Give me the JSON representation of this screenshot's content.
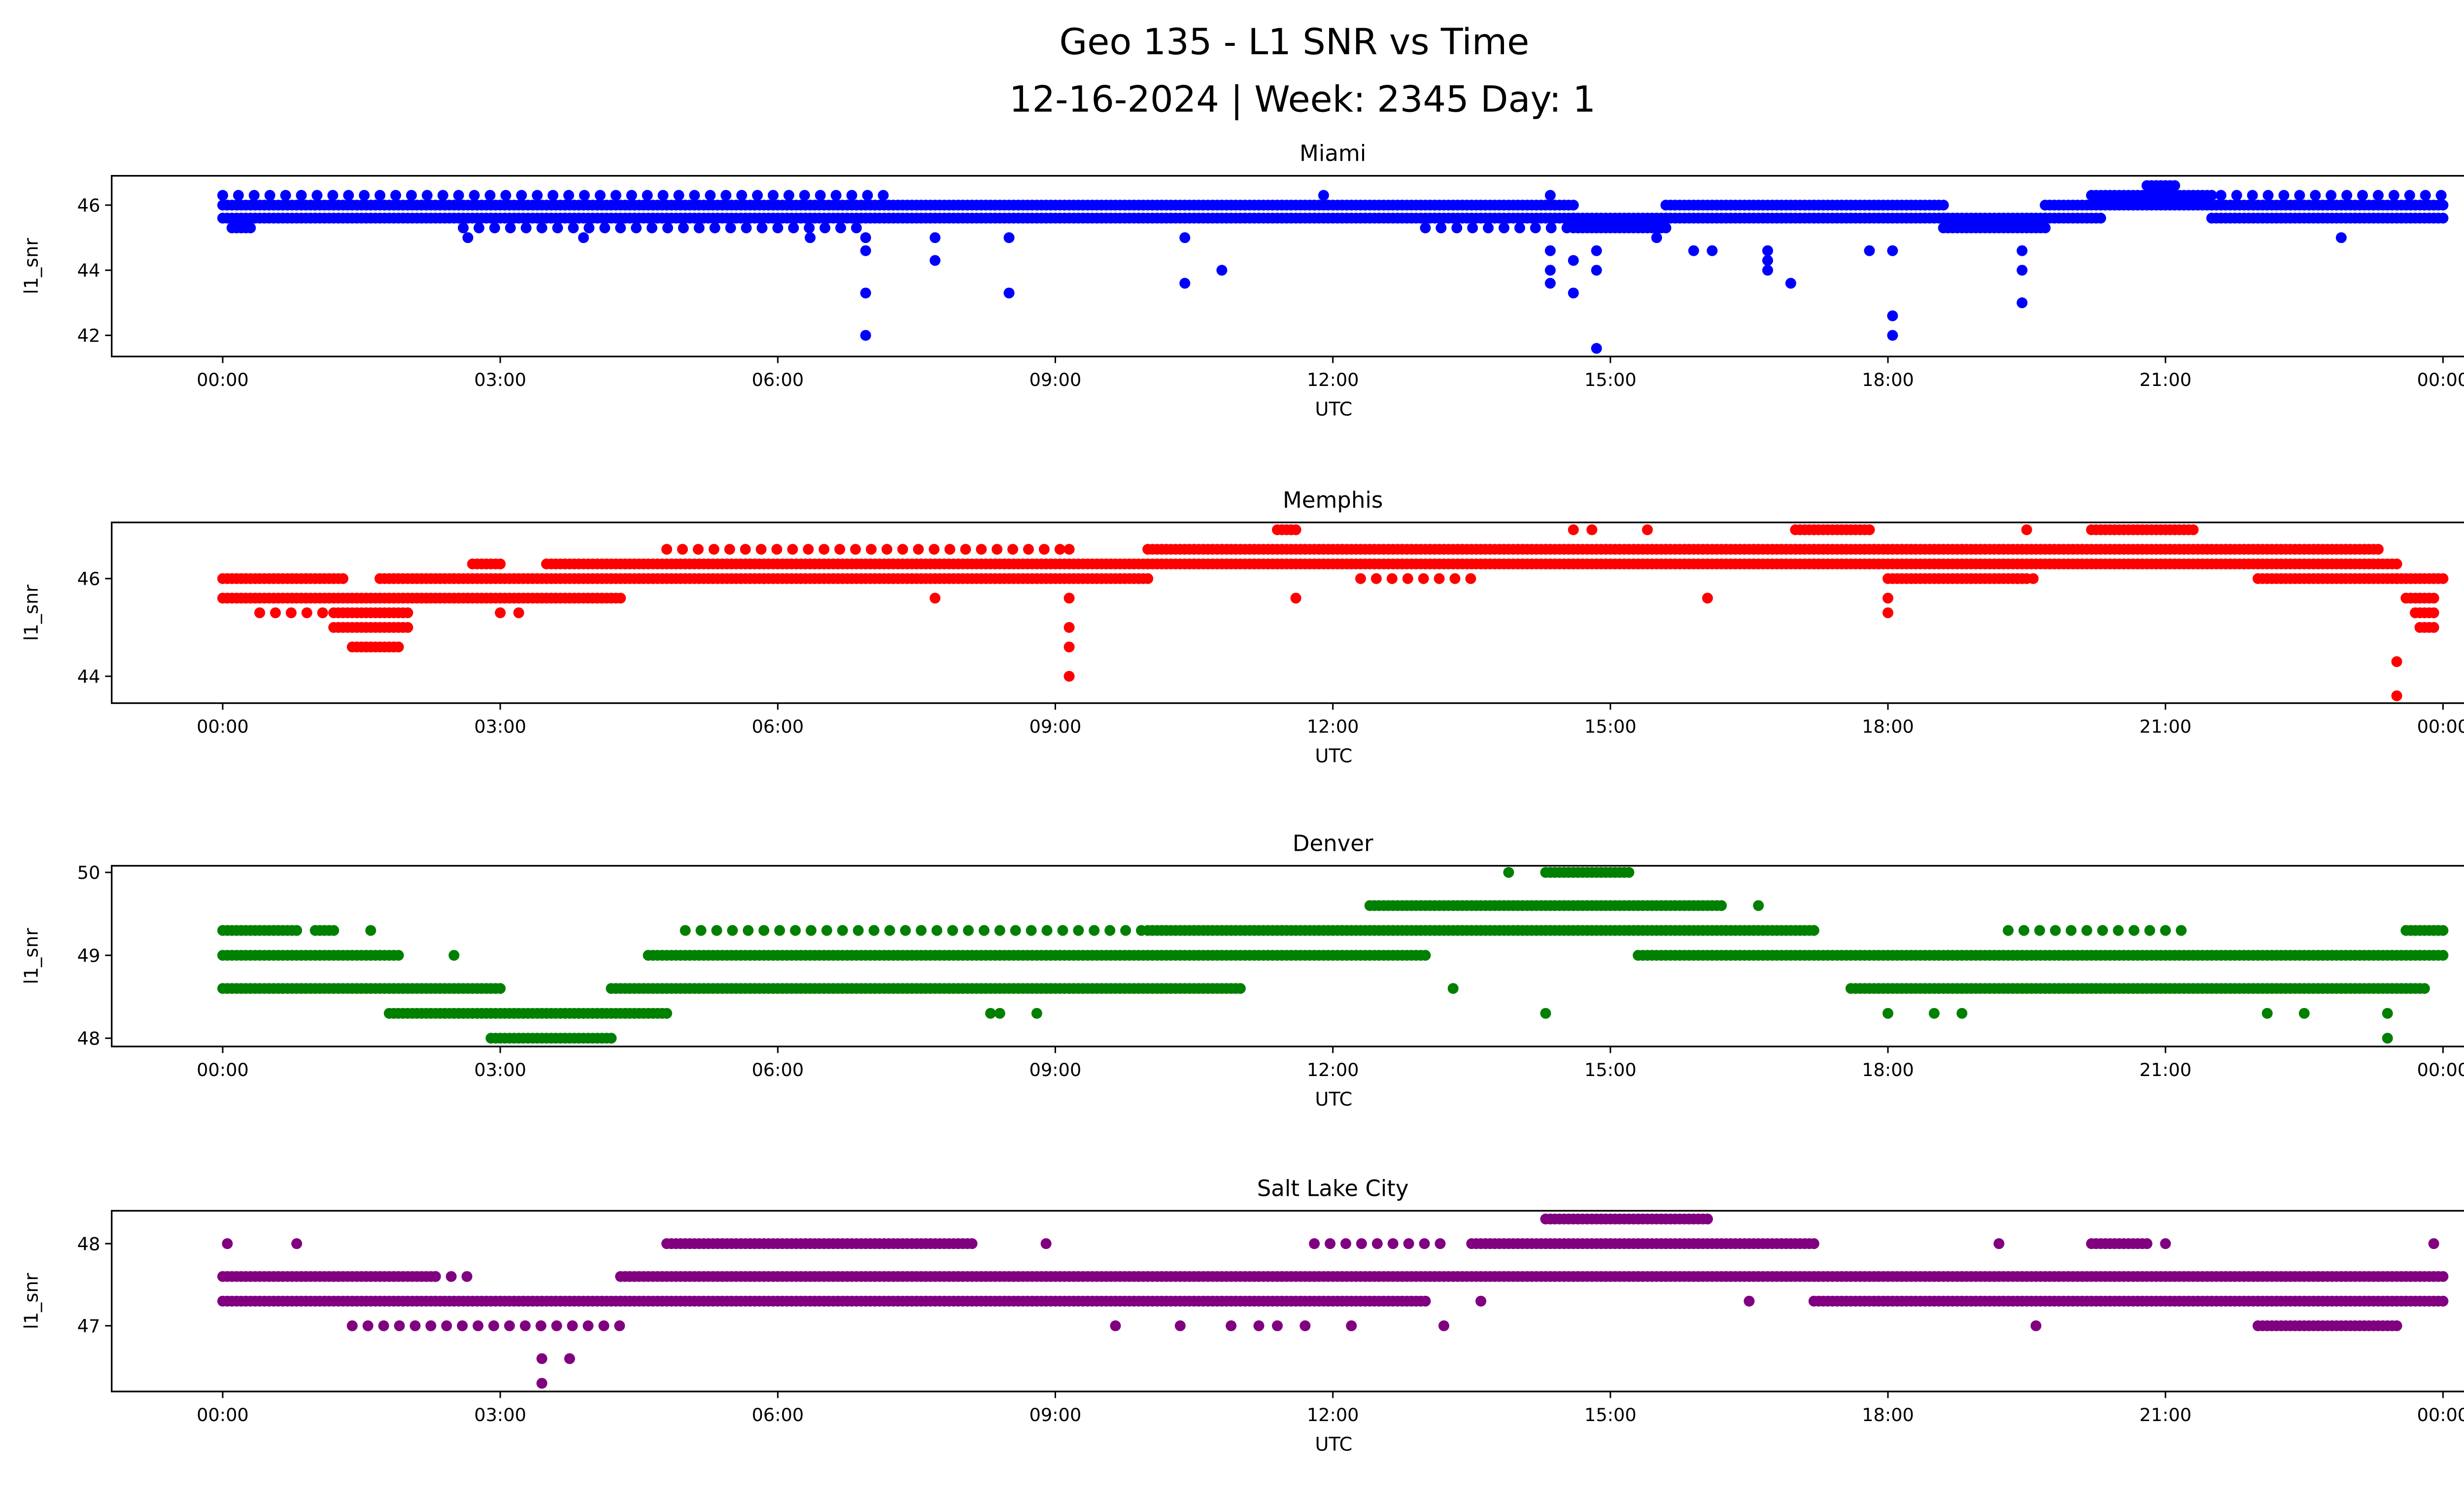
{
  "title_line1": "Geo 135 - L1 SNR vs Time",
  "title_line2": "12-16-2024 | Week: 2345 Day: 1",
  "chart_data": [
    {
      "type": "scatter",
      "title": "Miami",
      "xlabel": "UTC",
      "ylabel": "l1_snr",
      "color": "#0000ff",
      "xlim": [
        -1.2,
        25.2
      ],
      "ylim": [
        41.35,
        46.9
      ],
      "xticks": [
        0,
        3,
        6,
        9,
        12,
        15,
        18,
        21,
        24
      ],
      "xtick_labels": [
        "00:00",
        "03:00",
        "06:00",
        "09:00",
        "12:00",
        "15:00",
        "18:00",
        "21:00",
        "00:00"
      ],
      "yticks": [
        42,
        44,
        46
      ],
      "ytick_labels": [
        "42",
        "44",
        "46"
      ],
      "segments": [
        {
          "y": 45.6,
          "from": 0,
          "to": 14.6
        },
        {
          "y": 46.0,
          "from": 0,
          "to": 14.6
        },
        {
          "y": 46.3,
          "from": 0,
          "to": 7.2,
          "sparse": true
        },
        {
          "y": 45.3,
          "from": 0.1,
          "to": 0.3
        },
        {
          "y": 45.3,
          "from": 2.6,
          "to": 7.0,
          "sparse": true
        },
        {
          "y": 45.3,
          "from": 13.0,
          "to": 14.6,
          "sparse": true
        },
        {
          "y": 45.3,
          "from": 14.6,
          "to": 15.6
        },
        {
          "y": 45.6,
          "from": 14.6,
          "to": 15.6
        },
        {
          "y": 45.6,
          "from": 15.6,
          "to": 18.6
        },
        {
          "y": 46.0,
          "from": 15.6,
          "to": 18.6
        },
        {
          "y": 45.3,
          "from": 18.6,
          "to": 19.7
        },
        {
          "y": 45.6,
          "from": 18.6,
          "to": 19.7
        },
        {
          "y": 45.6,
          "from": 19.7,
          "to": 20.3
        },
        {
          "y": 46.0,
          "from": 19.7,
          "to": 21.5
        },
        {
          "y": 46.3,
          "from": 20.2,
          "to": 21.5
        },
        {
          "y": 46.6,
          "from": 20.8,
          "to": 21.1
        },
        {
          "y": 45.6,
          "from": 21.5,
          "to": 24
        },
        {
          "y": 46.0,
          "from": 21.5,
          "to": 24
        },
        {
          "y": 46.3,
          "from": 21.6,
          "to": 24,
          "sparse": true
        }
      ],
      "points": [
        [
          6.95,
          45.0
        ],
        [
          6.95,
          44.6
        ],
        [
          6.95,
          43.3
        ],
        [
          6.95,
          42.0
        ],
        [
          7.7,
          45.0
        ],
        [
          7.7,
          44.3
        ],
        [
          8.5,
          45.0
        ],
        [
          8.5,
          43.3
        ],
        [
          10.4,
          43.6
        ],
        [
          10.4,
          45.0
        ],
        [
          10.8,
          44.0
        ],
        [
          14.35,
          44.6
        ],
        [
          14.35,
          44.0
        ],
        [
          14.35,
          43.6
        ],
        [
          14.35,
          46.3
        ],
        [
          14.6,
          44.3
        ],
        [
          14.6,
          43.3
        ],
        [
          14.85,
          44.6
        ],
        [
          14.85,
          44.0
        ],
        [
          14.85,
          41.6
        ],
        [
          16.7,
          44.6
        ],
        [
          16.7,
          44.3
        ],
        [
          16.7,
          44.0
        ],
        [
          16.95,
          43.6
        ],
        [
          17.8,
          44.6
        ],
        [
          18.05,
          44.6
        ],
        [
          18.05,
          42.6
        ],
        [
          18.05,
          42.0
        ],
        [
          19.45,
          44.6
        ],
        [
          19.45,
          44.0
        ],
        [
          19.45,
          43.0
        ],
        [
          15.5,
          45.0
        ],
        [
          15.9,
          44.6
        ],
        [
          16.1,
          44.6
        ],
        [
          2.65,
          45.0
        ],
        [
          3.9,
          45.0
        ],
        [
          6.35,
          45.0
        ],
        [
          22.9,
          45.0
        ],
        [
          11.9,
          46.3
        ]
      ]
    },
    {
      "type": "scatter",
      "title": "Memphis",
      "xlabel": "UTC",
      "ylabel": "l1_snr",
      "color": "#ff0000",
      "xlim": [
        -1.2,
        25.2
      ],
      "ylim": [
        43.45,
        47.15
      ],
      "xticks": [
        0,
        3,
        6,
        9,
        12,
        15,
        18,
        21,
        24
      ],
      "xtick_labels": [
        "00:00",
        "03:00",
        "06:00",
        "09:00",
        "12:00",
        "15:00",
        "18:00",
        "21:00",
        "00:00"
      ],
      "yticks": [
        44,
        46
      ],
      "ytick_labels": [
        "44",
        "46"
      ],
      "segments": [
        {
          "y": 45.6,
          "from": 0,
          "to": 4.3
        },
        {
          "y": 46.0,
          "from": 0,
          "to": 1.3
        },
        {
          "y": 45.3,
          "from": 0.4,
          "to": 1.2,
          "sparse": true
        },
        {
          "y": 45.0,
          "from": 1.2,
          "to": 2.0
        },
        {
          "y": 45.3,
          "from": 1.2,
          "to": 2.0
        },
        {
          "y": 44.6,
          "from": 1.4,
          "to": 1.9
        },
        {
          "y": 46.0,
          "from": 1.7,
          "to": 10.0
        },
        {
          "y": 46.3,
          "from": 2.7,
          "to": 3.0
        },
        {
          "y": 46.3,
          "from": 3.5,
          "to": 10.0
        },
        {
          "y": 46.6,
          "from": 4.8,
          "to": 9.2,
          "sparse": true
        },
        {
          "y": 46.3,
          "from": 10.0,
          "to": 22.0
        },
        {
          "y": 46.6,
          "from": 10.0,
          "to": 23.3
        },
        {
          "y": 46.0,
          "from": 12.3,
          "to": 13.5,
          "sparse": true
        },
        {
          "y": 47.0,
          "from": 11.4,
          "to": 11.6
        },
        {
          "y": 47.0,
          "from": 17.0,
          "to": 17.8
        },
        {
          "y": 46.0,
          "from": 18.0,
          "to": 19.5
        },
        {
          "y": 46.0,
          "from": 19.4,
          "to": 19.7,
          "sparse": true
        },
        {
          "y": 47.0,
          "from": 20.2,
          "to": 21.3
        },
        {
          "y": 46.0,
          "from": 22.0,
          "to": 23.5
        },
        {
          "y": 46.3,
          "from": 22.0,
          "to": 23.5
        },
        {
          "y": 46.0,
          "from": 23.5,
          "to": 24
        },
        {
          "y": 45.6,
          "from": 23.6,
          "to": 23.9
        },
        {
          "y": 45.3,
          "from": 23.7,
          "to": 23.9
        },
        {
          "y": 45.0,
          "from": 23.75,
          "to": 23.9
        }
      ],
      "points": [
        [
          9.15,
          45.6
        ],
        [
          9.15,
          45.0
        ],
        [
          9.15,
          44.6
        ],
        [
          9.15,
          44.0
        ],
        [
          18.0,
          45.6
        ],
        [
          18.0,
          45.3
        ],
        [
          23.5,
          44.3
        ],
        [
          23.5,
          43.6
        ],
        [
          7.7,
          45.6
        ],
        [
          11.6,
          45.6
        ],
        [
          16.05,
          45.6
        ],
        [
          5.85,
          46.0
        ],
        [
          3.0,
          45.3
        ],
        [
          3.2,
          45.3
        ],
        [
          14.6,
          47.0
        ],
        [
          14.8,
          47.0
        ],
        [
          15.4,
          47.0
        ],
        [
          19.5,
          47.0
        ],
        [
          9.15,
          46.6
        ]
      ]
    },
    {
      "type": "scatter",
      "title": "Denver",
      "xlabel": "UTC",
      "ylabel": "l1_snr",
      "color": "#008000",
      "xlim": [
        -1.2,
        25.2
      ],
      "ylim": [
        47.9,
        50.08
      ],
      "xticks": [
        0,
        3,
        6,
        9,
        12,
        15,
        18,
        21,
        24
      ],
      "xtick_labels": [
        "00:00",
        "03:00",
        "06:00",
        "09:00",
        "12:00",
        "15:00",
        "18:00",
        "21:00",
        "00:00"
      ],
      "yticks": [
        48,
        49,
        50
      ],
      "ytick_labels": [
        "48",
        "49",
        "50"
      ],
      "segments": [
        {
          "y": 48.6,
          "from": 0,
          "to": 3.0
        },
        {
          "y": 49.0,
          "from": 0,
          "to": 1.9
        },
        {
          "y": 49.3,
          "from": 0,
          "to": 0.8
        },
        {
          "y": 49.3,
          "from": 1.0,
          "to": 1.2
        },
        {
          "y": 48.3,
          "from": 1.8,
          "to": 4.8
        },
        {
          "y": 48.0,
          "from": 2.9,
          "to": 4.2
        },
        {
          "y": 48.6,
          "from": 4.2,
          "to": 11.0
        },
        {
          "y": 49.0,
          "from": 4.6,
          "to": 13.0
        },
        {
          "y": 49.3,
          "from": 5.0,
          "to": 10.0,
          "sparse": true
        },
        {
          "y": 49.3,
          "from": 10.0,
          "to": 17.2
        },
        {
          "y": 49.6,
          "from": 12.4,
          "to": 16.2
        },
        {
          "y": 50.0,
          "from": 14.3,
          "to": 15.2
        },
        {
          "y": 49.0,
          "from": 15.3,
          "to": 24
        },
        {
          "y": 48.6,
          "from": 17.6,
          "to": 23.8
        },
        {
          "y": 49.3,
          "from": 19.3,
          "to": 21.2,
          "sparse": true
        },
        {
          "y": 49.3,
          "from": 23.6,
          "to": 24
        }
      ],
      "points": [
        [
          2.5,
          49.0
        ],
        [
          1.6,
          49.3
        ],
        [
          8.3,
          48.3
        ],
        [
          8.4,
          48.3
        ],
        [
          8.8,
          48.3
        ],
        [
          13.3,
          48.6
        ],
        [
          14.3,
          48.3
        ],
        [
          13.9,
          50.0
        ],
        [
          18.0,
          48.3
        ],
        [
          18.5,
          48.3
        ],
        [
          18.8,
          48.3
        ],
        [
          22.1,
          48.3
        ],
        [
          22.5,
          48.3
        ],
        [
          23.4,
          48.0
        ],
        [
          23.4,
          48.3
        ],
        [
          16.6,
          49.6
        ]
      ]
    },
    {
      "type": "scatter",
      "title": "Salt Lake City",
      "xlabel": "UTC",
      "ylabel": "l1_snr",
      "color": "#800080",
      "xlim": [
        -1.2,
        25.2
      ],
      "ylim": [
        46.2,
        48.4
      ],
      "xticks": [
        0,
        3,
        6,
        9,
        12,
        15,
        18,
        21,
        24
      ],
      "xtick_labels": [
        "00:00",
        "03:00",
        "06:00",
        "09:00",
        "12:00",
        "15:00",
        "18:00",
        "21:00",
        "00:00"
      ],
      "yticks": [
        47,
        48
      ],
      "ytick_labels": [
        "47",
        "48"
      ],
      "segments": [
        {
          "y": 47.3,
          "from": 0,
          "to": 4.3
        },
        {
          "y": 47.6,
          "from": 0,
          "to": 2.3
        },
        {
          "y": 47.0,
          "from": 1.4,
          "to": 4.3,
          "sparse": true
        },
        {
          "y": 47.6,
          "from": 2.3,
          "to": 2.7,
          "sparse": true
        },
        {
          "y": 47.6,
          "from": 4.3,
          "to": 24
        },
        {
          "y": 47.3,
          "from": 4.3,
          "to": 13.0
        },
        {
          "y": 48.0,
          "from": 4.8,
          "to": 8.1
        },
        {
          "y": 48.0,
          "from": 11.8,
          "to": 13.3,
          "sparse": true
        },
        {
          "y": 48.0,
          "from": 13.5,
          "to": 17.2
        },
        {
          "y": 48.3,
          "from": 14.3,
          "to": 16.0
        },
        {
          "y": 47.3,
          "from": 17.2,
          "to": 24
        },
        {
          "y": 47.0,
          "from": 22.0,
          "to": 23.5
        },
        {
          "y": 48.0,
          "from": 20.2,
          "to": 20.8
        }
      ],
      "points": [
        [
          0.05,
          48.0
        ],
        [
          0.8,
          48.0
        ],
        [
          3.45,
          46.6
        ],
        [
          3.45,
          46.3
        ],
        [
          3.75,
          46.6
        ],
        [
          8.9,
          48.0
        ],
        [
          9.65,
          47.0
        ],
        [
          10.35,
          47.0
        ],
        [
          10.9,
          47.0
        ],
        [
          11.2,
          47.0
        ],
        [
          11.4,
          47.0
        ],
        [
          11.7,
          47.0
        ],
        [
          12.2,
          47.0
        ],
        [
          13.2,
          47.0
        ],
        [
          13.6,
          47.3
        ],
        [
          16.5,
          47.3
        ],
        [
          16.05,
          48.3
        ],
        [
          19.2,
          48.0
        ],
        [
          19.6,
          47.0
        ],
        [
          21.0,
          48.0
        ],
        [
          23.9,
          48.0
        ]
      ]
    }
  ]
}
